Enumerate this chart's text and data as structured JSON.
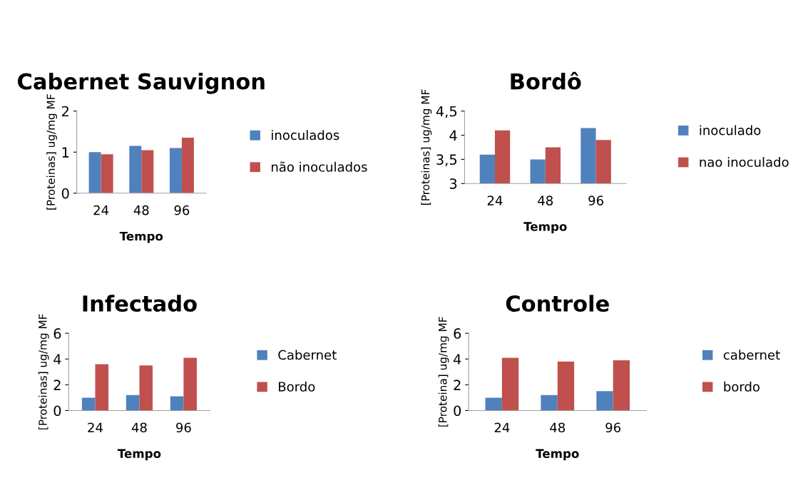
{
  "chart_data": [
    {
      "type": "bar",
      "title": "Cabernet Sauvignon",
      "xlabel": "Tempo",
      "ylabel": "[Proteinas] ug/mg MF",
      "categories": [
        "24",
        "48",
        "96"
      ],
      "series": [
        {
          "name": "inoculados",
          "color": "#4f81bd",
          "values": [
            1.0,
            1.15,
            1.1
          ]
        },
        {
          "name": "não inoculados",
          "color": "#c0504d",
          "values": [
            0.95,
            1.05,
            1.35
          ]
        }
      ],
      "ylim": [
        0,
        2
      ],
      "yticks": [
        0,
        1,
        2
      ],
      "grid": false,
      "legend": "right"
    },
    {
      "type": "bar",
      "title": "Bordô",
      "xlabel": "Tempo",
      "ylabel": "[Proteinas] ug/mg MF",
      "categories": [
        "24",
        "48",
        "96"
      ],
      "series": [
        {
          "name": "inoculado",
          "color": "#4f81bd",
          "values": [
            3.6,
            3.5,
            4.15
          ]
        },
        {
          "name": "nao inoculado",
          "color": "#c0504d",
          "values": [
            4.1,
            3.75,
            3.9
          ]
        }
      ],
      "ylim": [
        3,
        4.5
      ],
      "yticks": [
        3,
        {
          "value": 3.5,
          "label": "3,5"
        },
        4,
        {
          "value": 4.5,
          "label": "4,5"
        }
      ],
      "grid": false,
      "legend": "right"
    },
    {
      "type": "bar",
      "title": "Infectado",
      "xlabel": "Tempo",
      "ylabel": "[Proteinas] ug/mg MF",
      "categories": [
        "24",
        "48",
        "96"
      ],
      "series": [
        {
          "name": "Cabernet",
          "color": "#4f81bd",
          "values": [
            1.0,
            1.2,
            1.1
          ]
        },
        {
          "name": "Bordo",
          "color": "#c0504d",
          "values": [
            3.6,
            3.5,
            4.1
          ]
        }
      ],
      "ylim": [
        0,
        6
      ],
      "yticks": [
        0,
        2,
        4,
        6
      ],
      "grid": false,
      "legend": "right"
    },
    {
      "type": "bar",
      "title": "Controle",
      "xlabel": "Tempo",
      "ylabel": "[Proteina] ug/mg MF",
      "categories": [
        "24",
        "48",
        "96"
      ],
      "series": [
        {
          "name": "cabernet",
          "color": "#4f81bd",
          "values": [
            1.0,
            1.2,
            1.5
          ]
        },
        {
          "name": "bordo",
          "color": "#c0504d",
          "values": [
            4.1,
            3.8,
            3.9
          ]
        }
      ],
      "ylim": [
        0,
        6
      ],
      "yticks": [
        0,
        2,
        4,
        6
      ],
      "grid": false,
      "legend": "right"
    }
  ]
}
